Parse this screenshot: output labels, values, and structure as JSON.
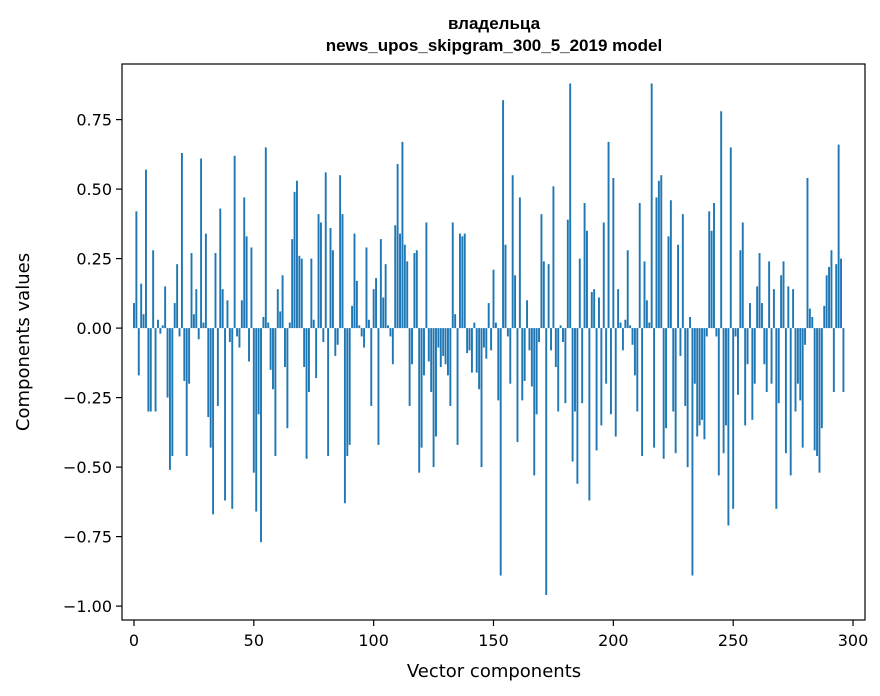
{
  "chart_data": {
    "type": "bar",
    "title": "владельца",
    "subtitle": "news_upos_skipgram_300_5_2019 model",
    "xlabel": "Vector components",
    "ylabel": "Components values",
    "xlim": [
      -5,
      305
    ],
    "ylim": [
      -1.05,
      0.95
    ],
    "xticks": [
      0,
      50,
      100,
      150,
      200,
      250,
      300
    ],
    "yticks": [
      -1.0,
      -0.75,
      -0.5,
      -0.25,
      0.0,
      0.25,
      0.5,
      0.75
    ],
    "ytick_labels": [
      "−1.00",
      "−0.75",
      "−0.50",
      "−0.25",
      "0.00",
      "0.25",
      "0.50",
      "0.75"
    ],
    "bar_color": "#1f77b4",
    "grid": false,
    "x": "indices 0..299",
    "values": [
      0.09,
      0.42,
      -0.17,
      0.16,
      0.05,
      0.57,
      -0.3,
      -0.3,
      0.28,
      -0.3,
      0.03,
      -0.02,
      0.01,
      0.15,
      -0.25,
      -0.51,
      -0.46,
      0.09,
      0.23,
      -0.03,
      0.63,
      -0.19,
      -0.46,
      -0.2,
      0.27,
      0.05,
      0.14,
      -0.04,
      0.61,
      0.02,
      0.34,
      -0.32,
      -0.43,
      -0.67,
      0.27,
      -0.28,
      0.43,
      0.14,
      -0.62,
      0.1,
      -0.05,
      -0.65,
      0.62,
      -0.03,
      -0.07,
      0.1,
      0.47,
      0.33,
      -0.12,
      0.29,
      -0.52,
      -0.66,
      -0.31,
      -0.77,
      0.04,
      0.65,
      0.02,
      -0.15,
      -0.22,
      -0.46,
      0.14,
      0.06,
      0.19,
      -0.14,
      -0.36,
      0.02,
      0.32,
      0.49,
      0.53,
      0.26,
      0.25,
      -0.14,
      -0.47,
      -0.23,
      0.25,
      0.03,
      -0.18,
      0.41,
      0.38,
      -0.05,
      0.56,
      -0.46,
      0.36,
      0.28,
      -0.1,
      -0.06,
      0.55,
      0.41,
      -0.63,
      -0.46,
      -0.42,
      0.08,
      0.34,
      0.17,
      0.01,
      -0.03,
      -0.07,
      0.29,
      0.03,
      -0.28,
      0.14,
      0.18,
      -0.42,
      0.32,
      0.11,
      0.23,
      0.01,
      -0.03,
      -0.13,
      0.37,
      0.59,
      0.34,
      0.67,
      0.3,
      0.24,
      -0.28,
      -0.13,
      0.27,
      0.28,
      -0.52,
      -0.43,
      -0.17,
      0.38,
      -0.12,
      -0.23,
      -0.5,
      -0.39,
      -0.07,
      -0.14,
      -0.1,
      -0.13,
      -0.17,
      -0.28,
      0.38,
      0.05,
      -0.42,
      0.34,
      0.33,
      0.34,
      -0.09,
      -0.08,
      -0.16,
      0.02,
      -0.16,
      -0.22,
      -0.5,
      -0.07,
      -0.11,
      0.09,
      -0.08,
      0.21,
      0.02,
      -0.26,
      -0.89,
      0.82,
      0.3,
      -0.03,
      -0.2,
      0.55,
      0.19,
      -0.41,
      0.47,
      -0.26,
      -0.19,
      0.1,
      -0.08,
      -0.21,
      -0.53,
      -0.31,
      -0.05,
      0.41,
      0.24,
      -0.96,
      0.23,
      -0.08,
      0.51,
      -0.14,
      -0.3,
      0.01,
      -0.05,
      -0.27,
      0.39,
      0.88,
      -0.48,
      -0.3,
      -0.56,
      0.25,
      -0.27,
      0.45,
      0.35,
      -0.62,
      0.13,
      0.14,
      -0.44,
      0.11,
      -0.35,
      0.38,
      -0.2,
      0.67,
      -0.31,
      0.54,
      -0.39,
      0.14,
      0.02,
      -0.08,
      0.03,
      0.28,
      0.01,
      -0.06,
      -0.17,
      -0.3,
      0.45,
      -0.46,
      0.24,
      0.1,
      0.02,
      0.88,
      -0.43,
      0.47,
      0.53,
      0.55,
      -0.47,
      -0.36,
      0.33,
      0.46,
      -0.3,
      -0.45,
      0.3,
      -0.1,
      0.41,
      -0.28,
      -0.5,
      0.04,
      -0.89,
      -0.2,
      -0.39,
      -0.35,
      -0.33,
      -0.4,
      -0.03,
      0.42,
      0.35,
      0.45,
      -0.03,
      -0.53,
      0.78,
      -0.45,
      -0.35,
      -0.71,
      0.65,
      -0.65,
      -0.03,
      -0.24,
      0.28,
      0.38,
      -0.35,
      -0.13,
      0.09,
      -0.33,
      -0.2,
      0.15,
      0.27,
      0.09,
      -0.13,
      -0.23,
      0.24,
      -0.2,
      0.14,
      -0.65,
      -0.27,
      0.19,
      0.24,
      -0.45,
      0.15,
      -0.53,
      0.14,
      -0.3,
      -0.2,
      -0.26,
      -0.43,
      -0.06,
      0.54,
      0.07,
      0.04,
      -0.44,
      -0.46,
      -0.52,
      -0.36,
      0.08,
      0.19,
      0.22,
      0.28,
      -0.23,
      0.23,
      0.66,
      0.25,
      -0.23,
      0.0,
      0.0,
      0.0
    ]
  }
}
